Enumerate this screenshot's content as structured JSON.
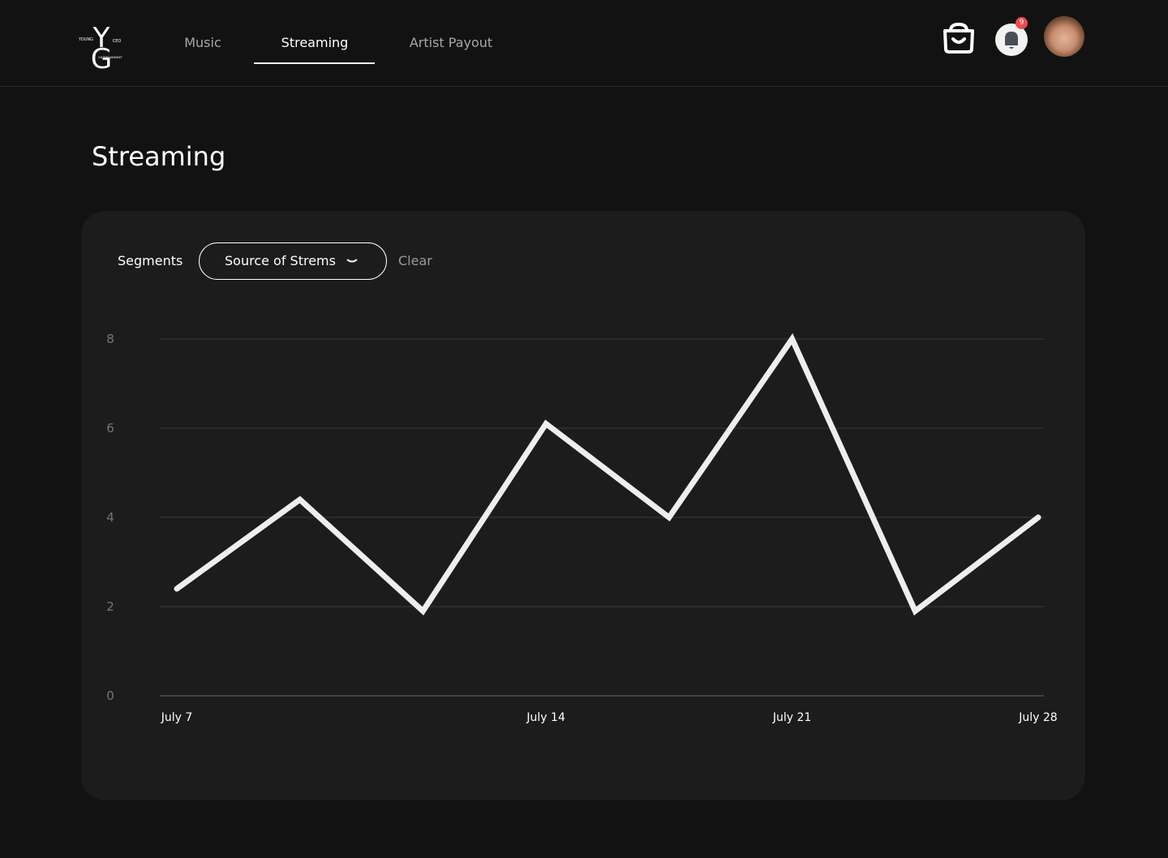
{
  "header": {
    "logo": {
      "top_left": "YOUNG",
      "top_right": "CEO",
      "bottom": "ENTERTAINMENT"
    },
    "nav": [
      "Music",
      "Streaming",
      "Artist Payout"
    ],
    "notification_count": "9"
  },
  "page_title": "Streaming",
  "filters": {
    "label": "Segments",
    "dropdown": "Source of Strems",
    "clear": "Clear"
  },
  "chart_data": {
    "type": "line",
    "categories": [
      "July 7",
      null,
      null,
      "July 14",
      null,
      "July 21",
      null,
      "July 28"
    ],
    "series": [
      {
        "name": null,
        "color": "#eeeeee",
        "values": [
          2.4,
          4.4,
          1.9,
          6.1,
          4.0,
          8.0,
          1.9,
          4.0
        ]
      }
    ],
    "ylim": [
      0,
      8
    ],
    "yticks": [
      0,
      2,
      4,
      6,
      8
    ],
    "grid": true
  }
}
